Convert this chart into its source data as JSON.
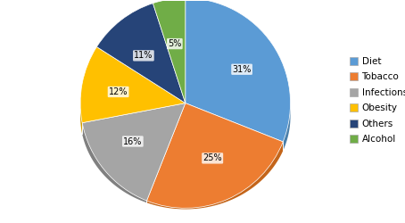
{
  "labels": [
    "Diet",
    "Tobacco",
    "Infections",
    "Obesity",
    "Others",
    "Alcohol"
  ],
  "values": [
    31,
    25,
    16,
    12,
    11,
    5
  ],
  "colors": [
    "#5B9BD5",
    "#ED7D31",
    "#A5A5A5",
    "#FFC000",
    "#264478",
    "#70AD47"
  ],
  "dark_colors": [
    "#4A7FAA",
    "#C4651A",
    "#808080",
    "#D4A000",
    "#1A3060",
    "#5A8C35"
  ],
  "startangle": 90,
  "figsize": [
    4.54,
    2.5
  ],
  "dpi": 100,
  "background_color": "#ffffff",
  "pct_labels": [
    "31%",
    "25%",
    "16%",
    "12%",
    "11%",
    "5%"
  ],
  "legend_labels": [
    "Diet",
    "Tobacco",
    "Infections",
    "Obesity",
    "Others",
    "Alcohol"
  ]
}
